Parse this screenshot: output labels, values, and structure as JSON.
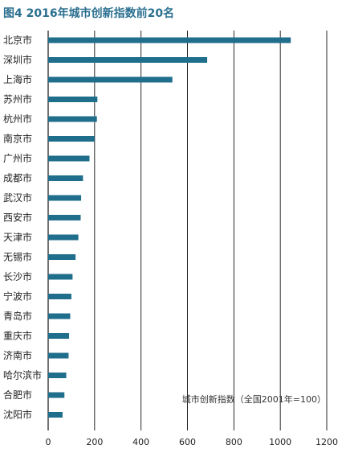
{
  "chart_data": {
    "type": "bar",
    "orientation": "horizontal",
    "title": "图4  2016年城市创新指数前20名",
    "annotation": "城市创新指数（全国2001年=100）",
    "categories": [
      "北京市",
      "深圳市",
      "上海市",
      "苏州市",
      "杭州市",
      "南京市",
      "广州市",
      "成都市",
      "武汉市",
      "西安市",
      "天津市",
      "无锡市",
      "长沙市",
      "宁波市",
      "青岛市",
      "重庆市",
      "济南市",
      "哈尔滨市",
      "合肥市",
      "沈阳市"
    ],
    "values": [
      1045,
      685,
      535,
      212,
      210,
      200,
      178,
      150,
      142,
      140,
      130,
      118,
      105,
      100,
      95,
      90,
      88,
      78,
      70,
      62
    ],
    "xlim": [
      0,
      1200
    ],
    "xticks": [
      0,
      200,
      400,
      600,
      800,
      1000,
      1200
    ],
    "grid": true,
    "bar_color": "#1f6e8c",
    "grid_color": "#111111"
  }
}
